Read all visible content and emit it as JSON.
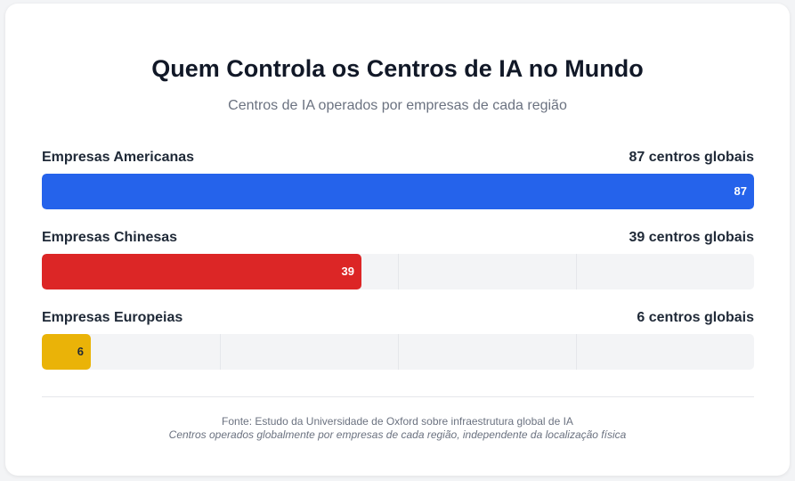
{
  "chart_data": {
    "type": "bar",
    "orientation": "horizontal",
    "title": "Quem Controla os Centros de IA no Mundo",
    "subtitle": "Centros de IA operados por empresas de cada região",
    "xlim": [
      0,
      87
    ],
    "grid": true,
    "items": [
      {
        "label": "Empresas Americanas",
        "value": 87,
        "count_label": "87 centros globais",
        "color": "#2563eb",
        "text_color": "#ffffff"
      },
      {
        "label": "Empresas Chinesas",
        "value": 39,
        "count_label": "39 centros globais",
        "color": "#dc2626",
        "text_color": "#ffffff"
      },
      {
        "label": "Empresas Europeias",
        "value": 6,
        "count_label": "6 centros globais",
        "color": "#eab308",
        "text_color": "#1f2937"
      }
    ],
    "source": "Fonte: Estudo da Universidade de Oxford sobre infraestrutura global de IA",
    "note": "Centros operados globalmente por empresas de cada região, independente da localização física"
  }
}
